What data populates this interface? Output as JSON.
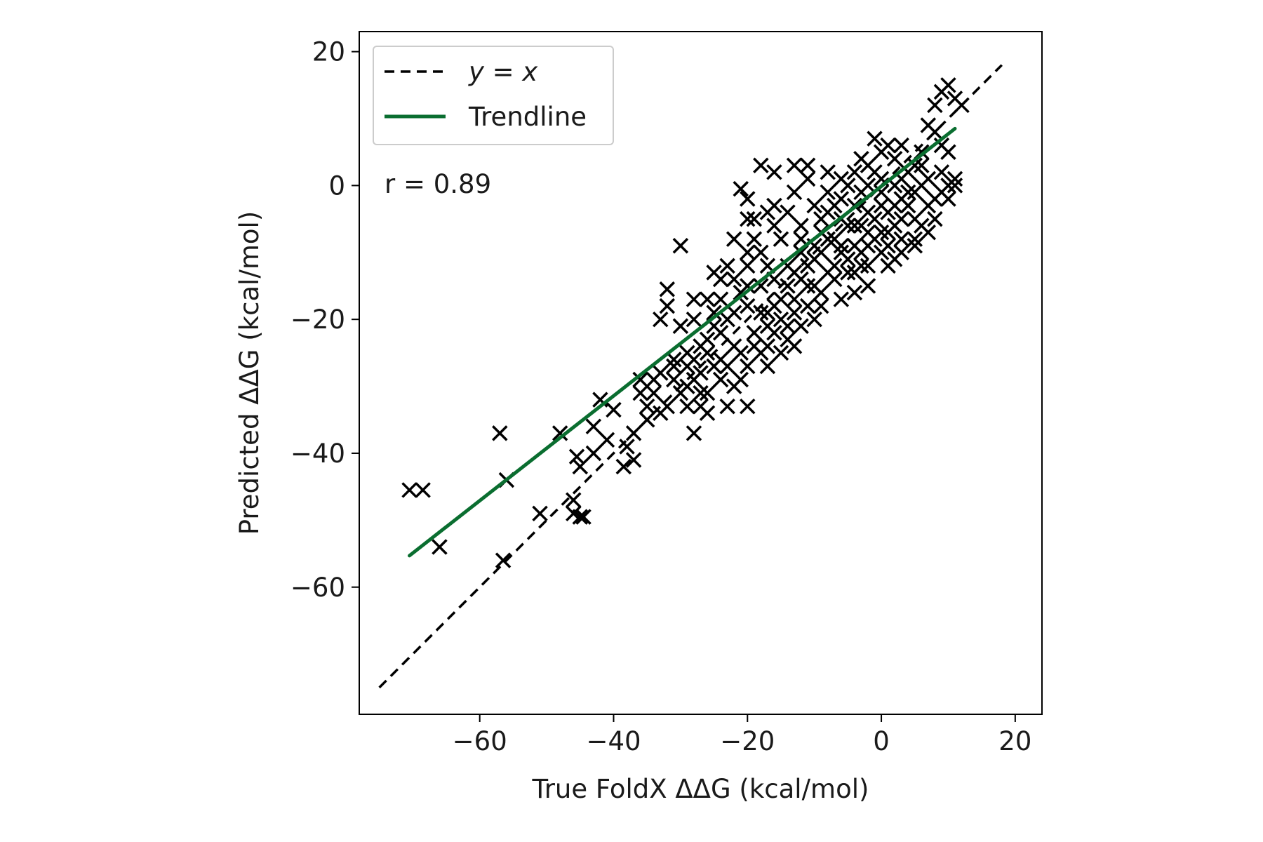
{
  "chart_data": {
    "type": "scatter",
    "xlabel": "True FoldX ΔΔG (kcal/mol)",
    "ylabel": "Predicted ΔΔG (kcal/mol)",
    "xlim": [
      -78,
      24
    ],
    "ylim": [
      -79,
      23
    ],
    "xticks": [
      -60,
      -40,
      -20,
      0,
      20
    ],
    "yticks": [
      20,
      0,
      -20,
      -40,
      -60
    ],
    "xtick_labels": [
      "−60",
      "−40",
      "−20",
      "0",
      "20"
    ],
    "ytick_labels": [
      "20",
      "0",
      "−20",
      "−40",
      "−60"
    ],
    "annotation": "r = 0.89",
    "grid": false,
    "legend_position": "top-left",
    "legend": [
      {
        "label": "y = x",
        "style": "dashed",
        "color": "#000000"
      },
      {
        "label": "Trendline",
        "style": "solid",
        "color": "#0a6e30"
      }
    ],
    "series": [
      {
        "marker": "x",
        "color": "#000000",
        "points": [
          [
            -70.5,
            -45.5
          ],
          [
            -68.5,
            -45.5
          ],
          [
            -66,
            -54
          ],
          [
            -57,
            -37
          ],
          [
            -56.5,
            -56
          ],
          [
            -56,
            -44
          ],
          [
            -51,
            -49
          ],
          [
            -48,
            -37
          ],
          [
            -46,
            -47
          ],
          [
            -46,
            -49
          ],
          [
            -45,
            -49.5
          ],
          [
            -44.5,
            -49.5
          ],
          [
            -45,
            -42
          ],
          [
            -45.5,
            -40.5
          ],
          [
            -43,
            -40
          ],
          [
            -43,
            -36
          ],
          [
            -42,
            -32
          ],
          [
            -41,
            -38
          ],
          [
            -40,
            -33.5
          ],
          [
            -38.5,
            -42
          ],
          [
            -38,
            -39
          ],
          [
            -37,
            -41
          ],
          [
            -37,
            -37
          ],
          [
            -36,
            -31
          ],
          [
            -35,
            -35
          ],
          [
            -34,
            -29
          ],
          [
            -33,
            -34
          ],
          [
            -31,
            -27
          ],
          [
            -30,
            -9
          ],
          [
            -32,
            -15.5
          ],
          [
            -33,
            -20
          ],
          [
            -32,
            -18
          ],
          [
            -28,
            -37
          ],
          [
            -27,
            -33
          ],
          [
            -26,
            -34
          ],
          [
            -23,
            -33
          ],
          [
            -22,
            -30
          ],
          [
            -20,
            -33
          ],
          [
            -21,
            -0.5
          ],
          [
            -20,
            -2
          ],
          [
            -20,
            -5
          ],
          [
            -19,
            -5
          ],
          [
            -17,
            -4
          ],
          [
            -18,
            3
          ],
          [
            -16,
            2
          ],
          [
            -13,
            3
          ],
          [
            -11,
            3
          ],
          [
            -15,
            -8
          ],
          [
            -17,
            -12
          ],
          [
            -10,
            -11
          ],
          [
            -14,
            -12
          ],
          [
            -12,
            -14
          ],
          [
            -9,
            -7
          ],
          [
            -8,
            -4
          ],
          [
            -6,
            -2
          ],
          [
            -4,
            -3
          ],
          [
            -2,
            0
          ],
          [
            0,
            1
          ],
          [
            2,
            4
          ],
          [
            3,
            6
          ],
          [
            4,
            2
          ],
          [
            5,
            3
          ],
          [
            6,
            5
          ],
          [
            7,
            9
          ],
          [
            8,
            12
          ],
          [
            9,
            14
          ],
          [
            10,
            15
          ],
          [
            11,
            13
          ],
          [
            12,
            12
          ],
          [
            8,
            8
          ],
          [
            9,
            6
          ],
          [
            10,
            5
          ],
          [
            11,
            0
          ],
          [
            10,
            -2
          ],
          [
            9,
            -1
          ],
          [
            7,
            -3
          ],
          [
            6,
            0
          ],
          [
            6,
            -6
          ],
          [
            3,
            -8
          ],
          [
            2,
            -11
          ],
          [
            0,
            -10
          ],
          [
            -2,
            -12
          ],
          [
            -4,
            -16
          ],
          [
            -6,
            -17
          ],
          [
            -9,
            -18
          ],
          [
            -12,
            -21
          ],
          [
            -15,
            -25
          ],
          [
            -17,
            -27
          ],
          [
            -14,
            -23
          ],
          [
            -19,
            -24
          ],
          [
            -22,
            -24
          ],
          [
            -24,
            -22
          ],
          [
            -26,
            -23
          ],
          [
            -28,
            -26
          ],
          [
            -28,
            -20
          ],
          [
            -26,
            -17
          ],
          [
            -24,
            -17
          ],
          [
            -22,
            -14
          ],
          [
            -20,
            -12
          ],
          [
            -18,
            -10
          ],
          [
            -22,
            -19
          ],
          [
            -25,
            -27
          ],
          [
            -28,
            -29
          ],
          [
            -30,
            -31
          ],
          [
            -31,
            -29
          ],
          [
            -29,
            -25
          ],
          [
            -24,
            -29
          ],
          [
            -20,
            -27
          ],
          [
            -17,
            -21
          ],
          [
            -16,
            -18
          ],
          [
            -13,
            -17
          ],
          [
            -11,
            -15
          ],
          [
            -8,
            -13
          ],
          [
            -6,
            -10
          ],
          [
            -4,
            -9
          ],
          [
            -3,
            -6
          ],
          [
            -1,
            -5
          ],
          [
            1,
            -4
          ],
          [
            2,
            -6
          ],
          [
            4,
            -3
          ],
          [
            5,
            -5
          ],
          [
            3,
            -2
          ],
          [
            0,
            -3
          ],
          [
            -2,
            -7
          ],
          [
            -5,
            -6
          ],
          [
            -7,
            -8
          ],
          [
            -10,
            -9
          ],
          [
            -12,
            -10
          ],
          [
            -14,
            -15
          ],
          [
            -16,
            -14
          ],
          [
            -18,
            -15
          ],
          [
            -20,
            -18
          ],
          [
            -23,
            -20
          ],
          [
            -25,
            -21
          ],
          [
            -27,
            -24
          ],
          [
            -29,
            -27
          ],
          [
            -31,
            -26
          ],
          [
            -26,
            -31
          ],
          [
            -23,
            -27
          ],
          [
            -21,
            -25
          ],
          [
            -19,
            -22
          ],
          [
            -17,
            -19
          ],
          [
            -15,
            -17
          ],
          [
            -13,
            -13
          ],
          [
            -11,
            -12
          ],
          [
            -9,
            -10
          ],
          [
            -7,
            -12
          ],
          [
            -5,
            -13
          ],
          [
            -3,
            -10
          ],
          [
            -1,
            -8
          ],
          [
            1,
            -7
          ],
          [
            3,
            -5
          ],
          [
            5,
            -1
          ],
          [
            7,
            1
          ],
          [
            -21,
            -16
          ],
          [
            -23,
            -12
          ],
          [
            -19,
            -8
          ],
          [
            -16,
            -6
          ],
          [
            -14,
            -4
          ],
          [
            -12,
            -6
          ],
          [
            -10,
            -3
          ],
          [
            -8,
            -1
          ],
          [
            -6,
            1
          ],
          [
            -4,
            2
          ],
          [
            -2,
            3
          ],
          [
            0,
            5
          ],
          [
            1,
            6
          ],
          [
            -1,
            7
          ],
          [
            -3,
            4
          ],
          [
            2,
            0
          ],
          [
            4,
            -1
          ],
          [
            -27,
            -28
          ],
          [
            -33,
            -28
          ],
          [
            -35,
            -33
          ],
          [
            -24,
            -26
          ],
          [
            -26,
            -25
          ],
          [
            -18,
            -25
          ],
          [
            -15,
            -20
          ],
          [
            -13,
            -19
          ],
          [
            -11,
            -18
          ],
          [
            -9,
            -16
          ],
          [
            -7,
            -14
          ],
          [
            -5,
            -11
          ],
          [
            -3,
            -12
          ],
          [
            -2,
            -9
          ],
          [
            0,
            -7
          ],
          [
            1,
            -9
          ],
          [
            2,
            -3
          ],
          [
            5,
            -8
          ],
          [
            8,
            -2
          ],
          [
            9,
            2
          ],
          [
            10,
            0
          ],
          [
            11,
            1
          ],
          [
            -30,
            -21
          ],
          [
            -28,
            -17
          ],
          [
            -25,
            -13
          ],
          [
            -22,
            -8
          ],
          [
            -20,
            -10
          ],
          [
            -16,
            -3
          ],
          [
            -13,
            -1
          ],
          [
            -11,
            1
          ],
          [
            -8,
            2
          ],
          [
            -5,
            0
          ],
          [
            -3,
            -1
          ],
          [
            -1,
            2
          ],
          [
            -36,
            -29
          ],
          [
            -34,
            -31
          ],
          [
            -29,
            -33
          ],
          [
            -27,
            -31
          ],
          [
            -21,
            -29
          ],
          [
            -17,
            -24
          ],
          [
            -14,
            -21
          ],
          [
            -10,
            -15
          ],
          [
            -8,
            -8
          ],
          [
            -6,
            -5
          ],
          [
            -4,
            -6
          ],
          [
            -2,
            -4
          ],
          [
            0,
            -1
          ],
          [
            3,
            1
          ],
          [
            6,
            3
          ],
          [
            -25,
            -19
          ],
          [
            -24,
            -14
          ],
          [
            -20,
            -15
          ],
          [
            -18,
            -19
          ],
          [
            -16,
            -22
          ],
          [
            -13,
            -24
          ],
          [
            -10,
            -20
          ],
          [
            -12,
            -8
          ],
          [
            -9,
            -5
          ],
          [
            -7,
            -3
          ],
          [
            -6,
            -9
          ],
          [
            -4,
            -13
          ],
          [
            -2,
            -15
          ],
          [
            1,
            -12
          ],
          [
            3,
            -10
          ],
          [
            5,
            -9
          ],
          [
            7,
            -7
          ],
          [
            8,
            -5
          ],
          [
            -29,
            -30
          ],
          [
            -32,
            -33
          ]
        ]
      }
    ],
    "reference_line": {
      "name": "y = x",
      "x": [
        -75,
        18
      ],
      "y": [
        -75,
        18
      ]
    },
    "trendline": {
      "name": "Trendline",
      "x": [
        -70.5,
        11
      ],
      "y": [
        -55.3,
        8.5
      ]
    }
  }
}
